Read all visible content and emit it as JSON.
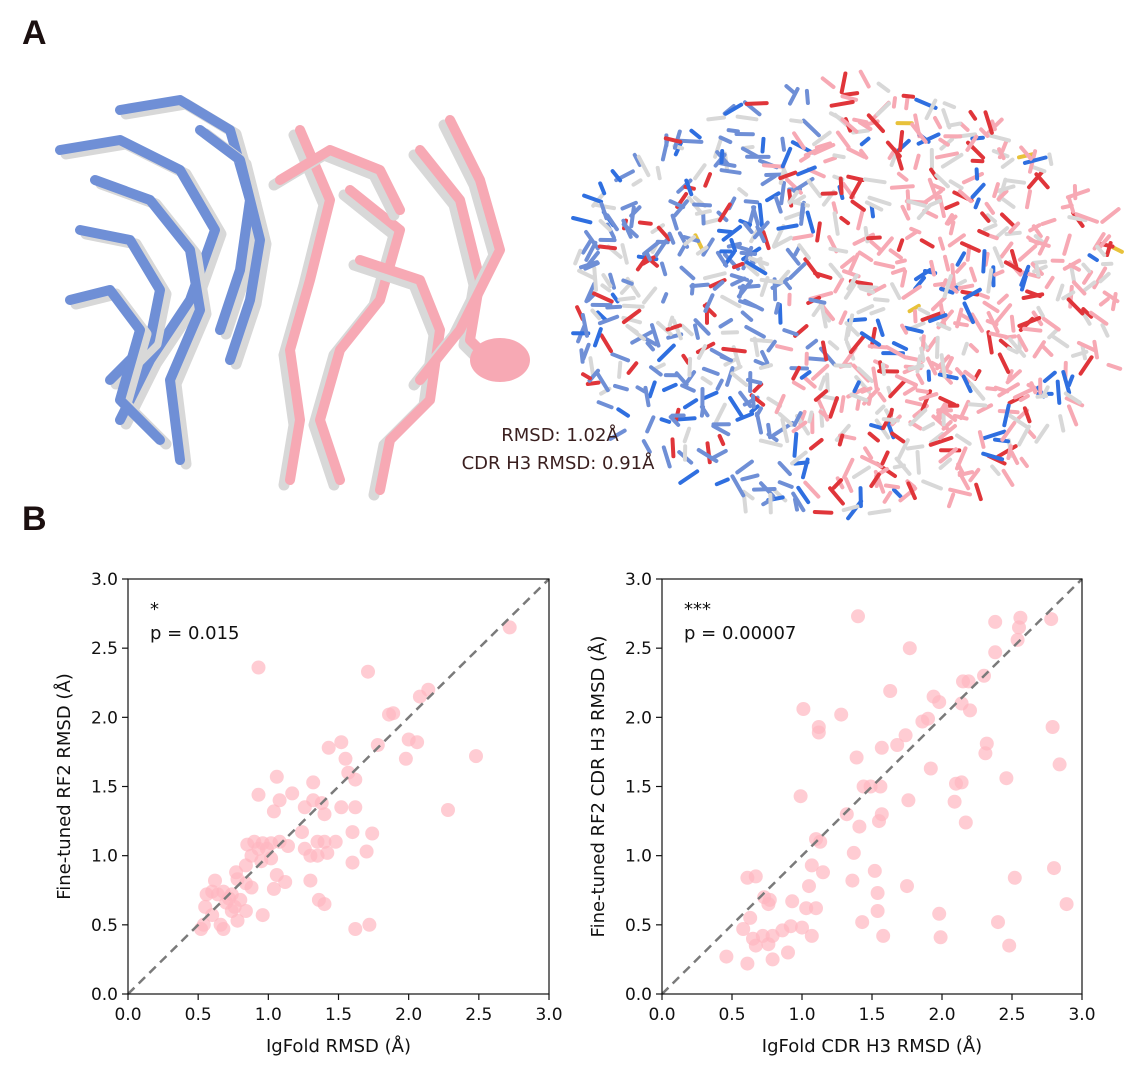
{
  "panels": {
    "a_label": "A",
    "b_label": "B"
  },
  "structure": {
    "rmsd_text": "RMSD: 1.02Å",
    "cdr_text": "CDR H3 RMSD: 0.91Å",
    "colors": {
      "heavy": "#6f8fd6",
      "light": "#f7a9b4",
      "reference": "#d8d8d8",
      "oxygen": "#e0353a",
      "nitrogen": "#2f6fe0",
      "sulfur": "#e8c23a"
    }
  },
  "chart_data": [
    {
      "type": "scatter",
      "annotation_star": "*",
      "annotation_p": "p = 0.015",
      "xlabel": "IgFold RMSD (Å)",
      "ylabel": "Fine-tuned RF2 RMSD (Å)",
      "xlim": [
        0,
        3
      ],
      "ylim": [
        0,
        3
      ],
      "xticks": [
        "0.0",
        "0.5",
        "1.0",
        "1.5",
        "2.0",
        "2.5",
        "3.0"
      ],
      "yticks": [
        "0.0",
        "0.5",
        "1.0",
        "1.5",
        "2.0",
        "2.5",
        "3.0"
      ],
      "diagonal": true,
      "point_color": "#ffb6c1",
      "points": [
        [
          2.72,
          2.65
        ],
        [
          0.93,
          2.36
        ],
        [
          1.71,
          2.33
        ],
        [
          2.14,
          2.2
        ],
        [
          2.08,
          2.15
        ],
        [
          1.89,
          2.03
        ],
        [
          1.86,
          2.02
        ],
        [
          2.0,
          1.84
        ],
        [
          2.06,
          1.82
        ],
        [
          1.43,
          1.78
        ],
        [
          1.52,
          1.82
        ],
        [
          1.78,
          1.8
        ],
        [
          1.98,
          1.7
        ],
        [
          2.48,
          1.72
        ],
        [
          1.55,
          1.7
        ],
        [
          1.57,
          1.6
        ],
        [
          1.62,
          1.55
        ],
        [
          1.06,
          1.57
        ],
        [
          1.32,
          1.53
        ],
        [
          0.93,
          1.44
        ],
        [
          1.17,
          1.45
        ],
        [
          1.08,
          1.4
        ],
        [
          1.32,
          1.4
        ],
        [
          1.38,
          1.38
        ],
        [
          1.26,
          1.35
        ],
        [
          1.52,
          1.35
        ],
        [
          1.62,
          1.35
        ],
        [
          2.28,
          1.33
        ],
        [
          1.04,
          1.32
        ],
        [
          1.4,
          1.3
        ],
        [
          1.6,
          1.17
        ],
        [
          1.74,
          1.16
        ],
        [
          1.24,
          1.17
        ],
        [
          0.9,
          1.1
        ],
        [
          0.96,
          1.09
        ],
        [
          1.02,
          1.09
        ],
        [
          1.08,
          1.1
        ],
        [
          1.35,
          1.1
        ],
        [
          1.4,
          1.1
        ],
        [
          1.48,
          1.1
        ],
        [
          1.14,
          1.07
        ],
        [
          0.85,
          1.08
        ],
        [
          0.93,
          1.05
        ],
        [
          0.99,
          1.05
        ],
        [
          1.26,
          1.05
        ],
        [
          1.3,
          1.0
        ],
        [
          1.35,
          1.0
        ],
        [
          1.42,
          1.02
        ],
        [
          1.7,
          1.03
        ],
        [
          0.88,
          1.0
        ],
        [
          0.95,
          0.96
        ],
        [
          1.02,
          0.98
        ],
        [
          1.6,
          0.95
        ],
        [
          0.84,
          0.93
        ],
        [
          0.77,
          0.88
        ],
        [
          1.06,
          0.86
        ],
        [
          1.12,
          0.81
        ],
        [
          1.3,
          0.82
        ],
        [
          0.62,
          0.82
        ],
        [
          0.78,
          0.83
        ],
        [
          0.84,
          0.8
        ],
        [
          0.88,
          0.77
        ],
        [
          1.04,
          0.76
        ],
        [
          0.68,
          0.74
        ],
        [
          0.74,
          0.72
        ],
        [
          0.6,
          0.74
        ],
        [
          0.64,
          0.72
        ],
        [
          0.56,
          0.72
        ],
        [
          0.72,
          0.69
        ],
        [
          0.8,
          0.68
        ],
        [
          1.36,
          0.68
        ],
        [
          1.4,
          0.65
        ],
        [
          0.7,
          0.66
        ],
        [
          0.76,
          0.63
        ],
        [
          0.74,
          0.6
        ],
        [
          0.84,
          0.6
        ],
        [
          0.96,
          0.57
        ],
        [
          0.6,
          0.57
        ],
        [
          0.55,
          0.63
        ],
        [
          0.78,
          0.53
        ],
        [
          0.66,
          0.5
        ],
        [
          0.54,
          0.5
        ],
        [
          0.52,
          0.47
        ],
        [
          0.68,
          0.47
        ],
        [
          1.72,
          0.5
        ],
        [
          1.62,
          0.47
        ]
      ]
    },
    {
      "type": "scatter",
      "annotation_star": "***",
      "annotation_p": "p = 0.00007",
      "xlabel": "IgFold CDR H3 RMSD (Å)",
      "ylabel": "Fine-tuned RF2 CDR H3 RMSD (Å)",
      "xlim": [
        0,
        3
      ],
      "ylim": [
        0,
        3
      ],
      "xticks": [
        "0.0",
        "0.5",
        "1.0",
        "1.5",
        "2.0",
        "2.5",
        "3.0"
      ],
      "yticks": [
        "0.0",
        "0.5",
        "1.0",
        "1.5",
        "2.0",
        "2.5",
        "3.0"
      ],
      "diagonal": true,
      "point_color": "#ffb6c1",
      "points": [
        [
          1.4,
          2.73
        ],
        [
          2.56,
          2.72
        ],
        [
          2.78,
          2.71
        ],
        [
          2.38,
          2.69
        ],
        [
          2.55,
          2.65
        ],
        [
          2.54,
          2.56
        ],
        [
          1.77,
          2.5
        ],
        [
          2.38,
          2.47
        ],
        [
          2.3,
          2.3
        ],
        [
          1.63,
          2.19
        ],
        [
          2.19,
          2.26
        ],
        [
          2.15,
          2.26
        ],
        [
          1.94,
          2.15
        ],
        [
          1.98,
          2.11
        ],
        [
          2.14,
          2.1
        ],
        [
          1.01,
          2.06
        ],
        [
          1.28,
          2.02
        ],
        [
          2.2,
          2.05
        ],
        [
          1.86,
          1.97
        ],
        [
          1.9,
          1.99
        ],
        [
          1.12,
          1.93
        ],
        [
          1.12,
          1.89
        ],
        [
          2.79,
          1.93
        ],
        [
          1.74,
          1.87
        ],
        [
          1.68,
          1.8
        ],
        [
          1.57,
          1.78
        ],
        [
          2.32,
          1.81
        ],
        [
          2.31,
          1.74
        ],
        [
          1.39,
          1.71
        ],
        [
          2.84,
          1.66
        ],
        [
          1.92,
          1.63
        ],
        [
          1.44,
          1.5
        ],
        [
          1.49,
          1.5
        ],
        [
          1.56,
          1.5
        ],
        [
          2.46,
          1.56
        ],
        [
          2.1,
          1.52
        ],
        [
          2.14,
          1.53
        ],
        [
          1.76,
          1.4
        ],
        [
          2.09,
          1.39
        ],
        [
          0.99,
          1.43
        ],
        [
          1.32,
          1.3
        ],
        [
          1.57,
          1.3
        ],
        [
          1.55,
          1.25
        ],
        [
          2.17,
          1.24
        ],
        [
          1.41,
          1.21
        ],
        [
          1.37,
          1.02
        ],
        [
          1.1,
          1.12
        ],
        [
          1.13,
          1.1
        ],
        [
          1.07,
          0.93
        ],
        [
          1.15,
          0.88
        ],
        [
          1.52,
          0.89
        ],
        [
          0.61,
          0.84
        ],
        [
          0.67,
          0.85
        ],
        [
          1.05,
          0.78
        ],
        [
          1.1,
          0.62
        ],
        [
          1.36,
          0.82
        ],
        [
          1.75,
          0.78
        ],
        [
          2.8,
          0.91
        ],
        [
          2.52,
          0.84
        ],
        [
          0.73,
          0.7
        ],
        [
          0.77,
          0.68
        ],
        [
          0.76,
          0.65
        ],
        [
          1.03,
          0.62
        ],
        [
          0.93,
          0.67
        ],
        [
          1.54,
          0.73
        ],
        [
          1.54,
          0.6
        ],
        [
          0.58,
          0.47
        ],
        [
          0.63,
          0.55
        ],
        [
          0.65,
          0.4
        ],
        [
          0.72,
          0.42
        ],
        [
          0.79,
          0.42
        ],
        [
          0.86,
          0.46
        ],
        [
          0.92,
          0.49
        ],
        [
          1.0,
          0.48
        ],
        [
          1.07,
          0.42
        ],
        [
          1.43,
          0.52
        ],
        [
          1.98,
          0.58
        ],
        [
          2.4,
          0.52
        ],
        [
          2.89,
          0.65
        ],
        [
          0.67,
          0.35
        ],
        [
          0.76,
          0.36
        ],
        [
          0.79,
          0.25
        ],
        [
          0.9,
          0.3
        ],
        [
          0.46,
          0.27
        ],
        [
          0.61,
          0.22
        ],
        [
          1.58,
          0.42
        ],
        [
          1.99,
          0.41
        ],
        [
          2.48,
          0.35
        ]
      ]
    }
  ]
}
